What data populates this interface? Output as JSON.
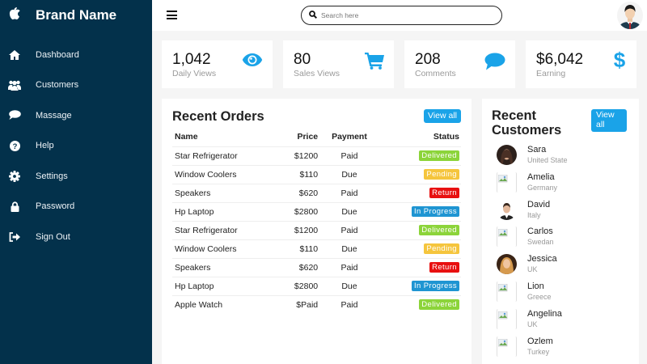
{
  "sidebar": {
    "brand": "Brand Name",
    "items": [
      {
        "label": "Dashboard",
        "icon": "home-icon"
      },
      {
        "label": "Customers",
        "icon": "users-icon"
      },
      {
        "label": "Massage",
        "icon": "comment-icon"
      },
      {
        "label": "Help",
        "icon": "question-icon"
      },
      {
        "label": "Settings",
        "icon": "gear-icon"
      },
      {
        "label": "Password",
        "icon": "lock-icon"
      },
      {
        "label": "Sign Out",
        "icon": "sign-out-icon"
      }
    ]
  },
  "topbar": {
    "search_placeholder": "Search here",
    "search_value": ""
  },
  "cards": [
    {
      "value": "1,042",
      "label": "Daily Views",
      "icon": "eye-icon"
    },
    {
      "value": "80",
      "label": "Sales Views",
      "icon": "cart-icon"
    },
    {
      "value": "208",
      "label": "Comments",
      "icon": "comment-icon"
    },
    {
      "value": "$6,042",
      "label": "Earning",
      "icon": "dollar-icon"
    }
  ],
  "orders": {
    "title": "Recent Orders",
    "view_all": "View all",
    "columns": [
      "Name",
      "Price",
      "Payment",
      "Status"
    ],
    "rows": [
      {
        "name": "Star Refrigerator",
        "price": "$1200",
        "payment": "Paid",
        "status": "Delivered"
      },
      {
        "name": "Window Coolers",
        "price": "$110",
        "payment": "Due",
        "status": "Pending"
      },
      {
        "name": "Speakers",
        "price": "$620",
        "payment": "Paid",
        "status": "Return"
      },
      {
        "name": "Hp Laptop",
        "price": "$2800",
        "payment": "Due",
        "status": "In Progress"
      },
      {
        "name": "Star Refrigerator",
        "price": "$1200",
        "payment": "Paid",
        "status": "Delivered"
      },
      {
        "name": "Window Coolers",
        "price": "$110",
        "payment": "Due",
        "status": "Pending"
      },
      {
        "name": "Speakers",
        "price": "$620",
        "payment": "Paid",
        "status": "Return"
      },
      {
        "name": "Hp Laptop",
        "price": "$2800",
        "payment": "Due",
        "status": "In Progress"
      },
      {
        "name": "Apple Watch",
        "price": "$Paid",
        "payment": "Paid",
        "status": "Delivered"
      }
    ],
    "status_colors": {
      "Delivered": "#8cd43a",
      "Pending": "#f5c53d",
      "Return": "#e81010",
      "In Progress": "#1f95d2"
    }
  },
  "customers": {
    "title": "Recent Customers",
    "view_all": "View all",
    "list": [
      {
        "name": "Sara",
        "country": "United State",
        "photo": "photo"
      },
      {
        "name": "Amelia",
        "country": "Germany",
        "photo": "broken"
      },
      {
        "name": "David",
        "country": "Italy",
        "photo": "photo"
      },
      {
        "name": "Carlos",
        "country": "Swedan",
        "photo": "broken"
      },
      {
        "name": "Jessica",
        "country": "UK",
        "photo": "photo"
      },
      {
        "name": "Lion",
        "country": "Greece",
        "photo": "broken"
      },
      {
        "name": "Angelina",
        "country": "UK",
        "photo": "broken"
      },
      {
        "name": "Ozlem",
        "country": "Turkey",
        "photo": "broken"
      }
    ]
  },
  "colors": {
    "sidebar_bg": "#03314b",
    "accent": "#1aa3e8",
    "page_bg": "#f5f5f5"
  }
}
